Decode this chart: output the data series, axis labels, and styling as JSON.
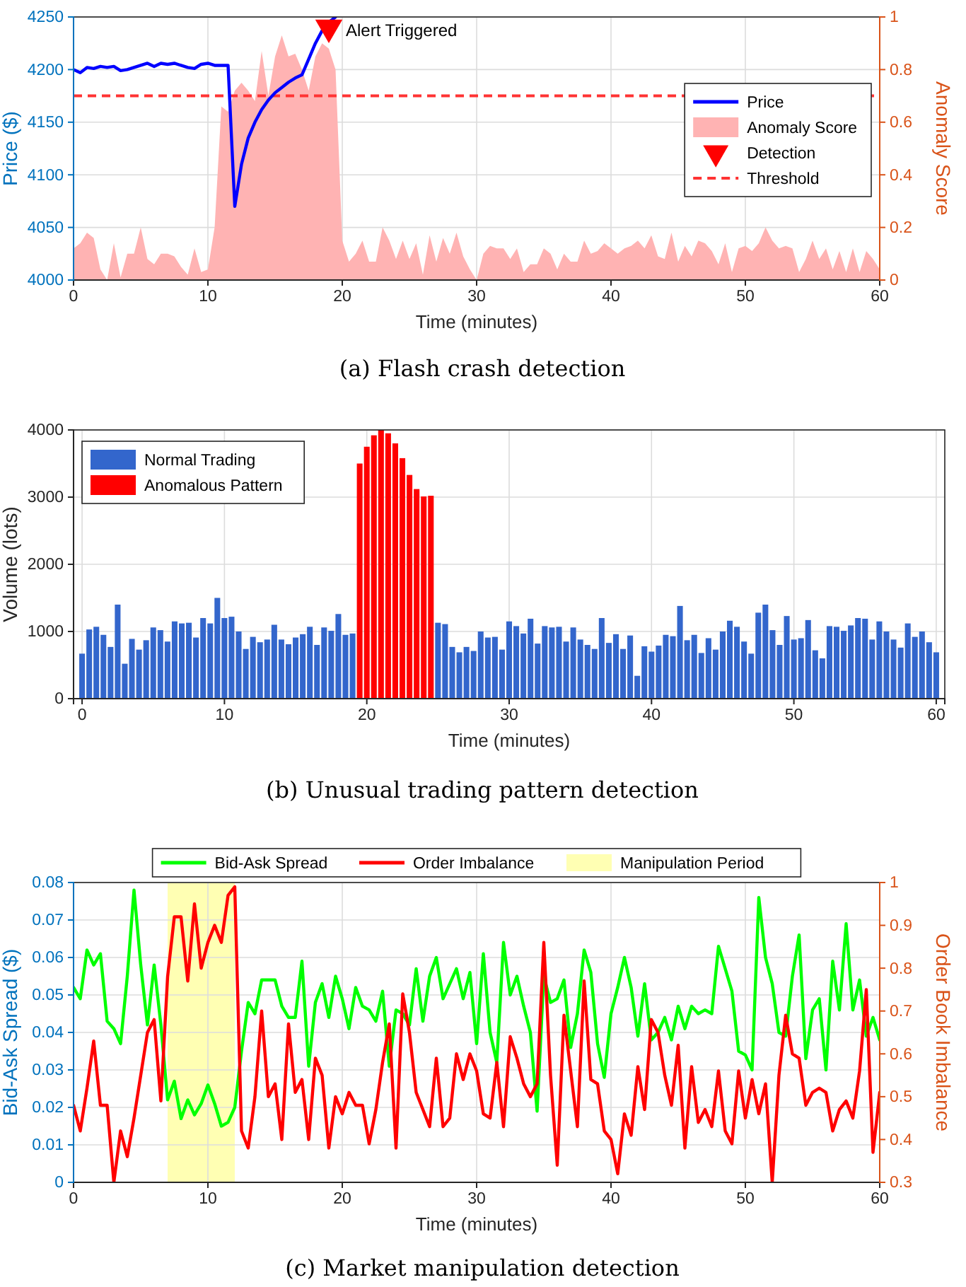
{
  "chart_data": [
    {
      "type": "line",
      "title": "(a) Flash crash detection",
      "xlabel": "Time (minutes)",
      "ylabel": "Price ($)",
      "y2label": "Anomaly Score",
      "xlim": [
        0,
        60
      ],
      "xticks": [
        0,
        10,
        20,
        30,
        40,
        50,
        60
      ],
      "ylim": [
        4000,
        4250
      ],
      "yticks": [
        4000,
        4050,
        4100,
        4150,
        4200,
        4250
      ],
      "y2lim": [
        0,
        1
      ],
      "y2ticks": [
        0,
        0.2,
        0.4,
        0.6,
        0.8,
        1
      ],
      "grid": true,
      "legend": "right",
      "x": [
        0,
        0.5,
        1,
        1.5,
        2,
        2.5,
        3,
        3.5,
        4,
        4.5,
        5,
        5.5,
        6,
        6.5,
        7,
        7.5,
        8,
        8.5,
        9,
        9.5,
        10,
        10.5,
        11,
        11.5,
        12,
        12.5,
        13,
        13.5,
        14,
        14.5,
        15,
        15.5,
        16,
        16.5,
        17,
        17.5,
        18,
        18.5,
        19,
        19.5,
        20,
        20.5,
        21,
        21.5,
        22,
        22.5,
        23,
        23.5,
        24,
        24.5,
        25,
        25.5,
        26,
        26.5,
        27,
        27.5,
        28,
        28.5,
        29,
        29.5,
        30,
        30.5,
        31,
        31.5,
        32,
        32.5,
        33,
        33.5,
        34,
        34.5,
        35,
        35.5,
        36,
        36.5,
        37,
        37.5,
        38,
        38.5,
        39,
        39.5,
        40,
        40.5,
        41,
        41.5,
        42,
        42.5,
        43,
        43.5,
        44,
        44.5,
        45,
        45.5,
        46,
        46.5,
        47,
        47.5,
        48,
        48.5,
        49,
        49.5,
        50,
        50.5,
        51,
        51.5,
        52,
        52.5,
        53,
        53.5,
        54,
        54.5,
        55,
        55.5,
        56,
        56.5,
        57,
        57.5,
        58,
        58.5,
        59,
        59.5,
        60
      ],
      "series": [
        {
          "name": "Price",
          "color": "#0000ff",
          "x": [
            0,
            0.5,
            1,
            1.5,
            2,
            2.5,
            3,
            3.5,
            4,
            4.5,
            5,
            5.5,
            6,
            6.5,
            7,
            7.5,
            8,
            8.5,
            9,
            9.5,
            10,
            10.5,
            11,
            11.5,
            12,
            12.5,
            13,
            13.5,
            14,
            14.5,
            15,
            15.5,
            16,
            16.5,
            17,
            17.5,
            18,
            18.5,
            19,
            19.5
          ],
          "values": [
            4200,
            4197,
            4202,
            4201,
            4203,
            4202,
            4203,
            4199,
            4200,
            4202,
            4204,
            4206,
            4203,
            4206,
            4205,
            4206,
            4204,
            4202,
            4201,
            4205,
            4206,
            4204,
            4204,
            4204,
            4070,
            4110,
            4135,
            4150,
            4162,
            4171,
            4178,
            4183,
            4188,
            4192,
            4195,
            4210,
            4225,
            4237,
            4245,
            4250
          ]
        },
        {
          "name": "Anomaly Score",
          "type": "area",
          "axis": "y2",
          "color": "#ffb3b3",
          "values": [
            0.12,
            0.14,
            0.18,
            0.16,
            0.04,
            0,
            0.14,
            0.01,
            0.1,
            0.1,
            0.2,
            0.08,
            0.06,
            0.1,
            0.1,
            0.09,
            0.05,
            0.02,
            0.12,
            0.03,
            0.04,
            0.2,
            0.66,
            0.64,
            0.72,
            0.75,
            0.72,
            0.68,
            0.87,
            0.7,
            0.85,
            0.93,
            0.85,
            0.86,
            0.8,
            0.72,
            0.85,
            0.9,
            0.88,
            0.8,
            0.15,
            0.07,
            0.1,
            0.15,
            0.07,
            0.07,
            0.2,
            0.15,
            0.08,
            0.15,
            0.08,
            0.14,
            0.02,
            0.17,
            0.07,
            0.16,
            0.1,
            0.18,
            0.09,
            0.04,
            0,
            0.1,
            0.13,
            0.12,
            0.12,
            0.08,
            0.12,
            0.03,
            0.06,
            0.06,
            0.12,
            0.1,
            0.04,
            0.1,
            0.07,
            0.07,
            0.15,
            0.1,
            0.11,
            0.14,
            0.12,
            0.1,
            0.12,
            0.13,
            0.15,
            0.12,
            0.17,
            0.09,
            0.08,
            0.18,
            0.07,
            0.13,
            0.09,
            0.15,
            0.14,
            0.11,
            0.06,
            0.14,
            0.03,
            0.12,
            0.13,
            0.11,
            0.14,
            0.2,
            0.15,
            0.12,
            0.13,
            0.12,
            0.03,
            0.08,
            0.15,
            0.08,
            0.12,
            0.04,
            0.11,
            0.03,
            0.12,
            0.03,
            0.11,
            0.08,
            0.04
          ]
        },
        {
          "name": "Detection",
          "type": "scatter",
          "marker": "triangle",
          "color": "#ff0000",
          "x": [
            19
          ],
          "values": [
            4240
          ]
        }
      ],
      "ref_lines": [
        {
          "axis": "y2",
          "value": 0.7,
          "label": "Threshold",
          "color": "#ff3333",
          "line_style": "dashed"
        }
      ],
      "annotations": [
        {
          "text": "Alert Triggered",
          "x": 19,
          "y": 4240
        }
      ]
    },
    {
      "type": "bar",
      "title": "(b) Unusual trading pattern detection",
      "xlabel": "Time (minutes)",
      "ylabel": "Volume (lots)",
      "xlim": [
        -0.6,
        60.6
      ],
      "xticks": [
        0,
        10,
        20,
        30,
        40,
        50,
        60
      ],
      "ylim": [
        0,
        4000
      ],
      "yticks": [
        0,
        1000,
        2000,
        3000,
        4000
      ],
      "grid": true,
      "legend": "top left",
      "x": [
        0,
        0.5,
        1,
        1.5,
        2,
        2.5,
        3,
        3.5,
        4,
        4.5,
        5,
        5.5,
        6,
        6.5,
        7,
        7.5,
        8,
        8.5,
        9,
        9.5,
        10,
        10.5,
        11,
        11.5,
        12,
        12.5,
        13,
        13.5,
        14,
        14.5,
        15,
        15.5,
        16,
        16.5,
        17,
        17.5,
        18,
        18.5,
        19,
        19.5,
        20,
        20.5,
        21,
        21.5,
        22,
        22.5,
        23,
        23.5,
        24,
        24.5,
        25,
        25.5,
        26,
        26.5,
        27,
        27.5,
        28,
        28.5,
        29,
        29.5,
        30,
        30.5,
        31,
        31.5,
        32,
        32.5,
        33,
        33.5,
        34,
        34.5,
        35,
        35.5,
        36,
        36.5,
        37,
        37.5,
        38,
        38.5,
        39,
        39.5,
        40,
        40.5,
        41,
        41.5,
        42,
        42.5,
        43,
        43.5,
        44,
        44.5,
        45,
        45.5,
        46,
        46.5,
        47,
        47.5,
        48,
        48.5,
        49,
        49.5,
        50,
        50.5,
        51,
        51.5,
        52,
        52.5,
        53,
        53.5,
        54,
        54.5,
        55,
        55.5,
        56,
        56.5,
        57,
        57.5,
        58,
        58.5,
        59,
        59.5,
        60
      ],
      "series": [
        {
          "name": "Normal Trading",
          "color": "#3366cc",
          "values": [
            670,
            1030,
            1070,
            950,
            770,
            1400,
            520,
            890,
            730,
            870,
            1060,
            1020,
            850,
            1150,
            1120,
            1130,
            910,
            1200,
            1120,
            1500,
            1200,
            1220,
            1000,
            740,
            920,
            840,
            880,
            1100,
            880,
            810,
            910,
            960,
            1070,
            800,
            1060,
            1010,
            1260,
            950,
            970,
            null,
            null,
            null,
            null,
            null,
            null,
            null,
            null,
            null,
            null,
            null,
            1130,
            1110,
            770,
            690,
            770,
            710,
            1000,
            910,
            920,
            730,
            1150,
            1080,
            970,
            1190,
            820,
            1080,
            1060,
            1070,
            850,
            1060,
            880,
            800,
            740,
            1200,
            830,
            960,
            740,
            940,
            340,
            780,
            700,
            790,
            950,
            930,
            1380,
            870,
            950,
            680,
            900,
            730,
            1000,
            1160,
            1070,
            850,
            670,
            1280,
            1400,
            1020,
            800,
            1230,
            880,
            900,
            1170,
            720,
            600,
            1080,
            1070,
            1010,
            1090,
            1200,
            1190,
            880,
            1150,
            1000,
            880,
            760,
            1120,
            920,
            1000,
            840,
            690
          ]
        },
        {
          "name": "Anomalous Pattern",
          "color": "#ff0000",
          "values": [
            null,
            null,
            null,
            null,
            null,
            null,
            null,
            null,
            null,
            null,
            null,
            null,
            null,
            null,
            null,
            null,
            null,
            null,
            null,
            null,
            null,
            null,
            null,
            null,
            null,
            null,
            null,
            null,
            null,
            null,
            null,
            null,
            null,
            null,
            null,
            null,
            null,
            null,
            null,
            3500,
            3750,
            3920,
            4000,
            3950,
            3800,
            3580,
            3330,
            3120,
            3010,
            3020,
            null,
            null,
            null,
            null,
            null,
            null,
            null,
            null,
            null,
            null,
            null,
            null,
            null,
            null,
            null,
            null,
            null,
            null,
            null,
            null,
            null,
            null,
            null,
            null,
            null,
            null,
            null,
            null,
            null,
            null,
            null,
            null,
            null,
            null,
            null,
            null,
            null,
            null,
            null,
            null,
            null,
            null,
            null,
            null,
            null,
            null,
            null,
            null,
            null,
            null,
            null,
            null,
            null,
            null,
            null,
            null,
            null,
            null,
            null,
            null,
            null,
            null,
            null,
            null,
            null,
            null,
            null,
            null,
            null,
            null,
            null
          ]
        }
      ]
    },
    {
      "type": "line",
      "title": "(c) Market manipulation detection",
      "xlabel": "Time (minutes)",
      "ylabel": "Bid-Ask Spread ($)",
      "y2label": "Order Book Imbalance",
      "xlim": [
        0,
        60
      ],
      "xticks": [
        0,
        10,
        20,
        30,
        40,
        50,
        60
      ],
      "ylim": [
        0,
        0.08
      ],
      "yticks": [
        0,
        0.01,
        0.02,
        0.03,
        0.04,
        0.05,
        0.06,
        0.07,
        0.08
      ],
      "y2lim": [
        0.3,
        1
      ],
      "y2ticks": [
        0.3,
        0.4,
        0.5,
        0.6,
        0.7,
        0.8,
        0.9,
        1
      ],
      "grid": true,
      "legend": "top",
      "x": [
        0,
        0.5,
        1,
        1.5,
        2,
        2.5,
        3,
        3.5,
        4,
        4.5,
        5,
        5.5,
        6,
        6.5,
        7,
        7.5,
        8,
        8.5,
        9,
        9.5,
        10,
        10.5,
        11,
        11.5,
        12,
        12.5,
        13,
        13.5,
        14,
        14.5,
        15,
        15.5,
        16,
        16.5,
        17,
        17.5,
        18,
        18.5,
        19,
        19.5,
        20,
        20.5,
        21,
        21.5,
        22,
        22.5,
        23,
        23.5,
        24,
        24.5,
        25,
        25.5,
        26,
        26.5,
        27,
        27.5,
        28,
        28.5,
        29,
        29.5,
        30,
        30.5,
        31,
        31.5,
        32,
        32.5,
        33,
        33.5,
        34,
        34.5,
        35,
        35.5,
        36,
        36.5,
        37,
        37.5,
        38,
        38.5,
        39,
        39.5,
        40,
        40.5,
        41,
        41.5,
        42,
        42.5,
        43,
        43.5,
        44,
        44.5,
        45,
        45.5,
        46,
        46.5,
        47,
        47.5,
        48,
        48.5,
        49,
        49.5,
        50,
        50.5,
        51,
        51.5,
        52,
        52.5,
        53,
        53.5,
        54,
        54.5,
        55,
        55.5,
        56,
        56.5,
        57,
        57.5,
        58,
        58.5,
        59,
        59.5,
        60
      ],
      "series": [
        {
          "name": "Bid-Ask Spread",
          "color": "#00ff00",
          "values": [
            0.052,
            0.049,
            0.062,
            0.058,
            0.061,
            0.043,
            0.041,
            0.037,
            0.055,
            0.078,
            0.058,
            0.042,
            0.058,
            0.042,
            0.022,
            0.027,
            0.017,
            0.022,
            0.018,
            0.021,
            0.026,
            0.021,
            0.015,
            0.016,
            0.02,
            0.035,
            0.048,
            0.045,
            0.054,
            0.054,
            0.054,
            0.047,
            0.044,
            0.044,
            0.059,
            0.031,
            0.048,
            0.053,
            0.044,
            0.055,
            0.049,
            0.041,
            0.052,
            0.047,
            0.046,
            0.043,
            0.051,
            0.031,
            0.046,
            0.045,
            0.042,
            0.057,
            0.043,
            0.055,
            0.06,
            0.049,
            0.053,
            0.057,
            0.049,
            0.056,
            0.037,
            0.061,
            0.04,
            0.032,
            0.064,
            0.05,
            0.055,
            0.047,
            0.04,
            0.019,
            0.055,
            0.048,
            0.049,
            0.054,
            0.036,
            0.045,
            0.062,
            0.056,
            0.037,
            0.028,
            0.045,
            0.052,
            0.06,
            0.052,
            0.039,
            0.053,
            0.038,
            0.04,
            0.044,
            0.038,
            0.047,
            0.041,
            0.047,
            0.045,
            0.046,
            0.045,
            0.063,
            0.057,
            0.051,
            0.035,
            0.034,
            0.03,
            0.076,
            0.06,
            0.053,
            0.04,
            0.039,
            0.055,
            0.066,
            0.033,
            0.046,
            0.049,
            0.03,
            0.059,
            0.046,
            0.069,
            0.046,
            0.054,
            0.039,
            0.044,
            0.038
          ]
        },
        {
          "name": "Order Imbalance",
          "color": "#ff0000",
          "axis": "y2",
          "values": [
            0.48,
            0.42,
            0.52,
            0.63,
            0.48,
            0.48,
            0.3,
            0.42,
            0.36,
            0.45,
            0.55,
            0.65,
            0.68,
            0.49,
            0.78,
            0.92,
            0.92,
            0.77,
            0.95,
            0.8,
            0.86,
            0.9,
            0.86,
            0.97,
            0.99,
            0.42,
            0.38,
            0.5,
            0.7,
            0.5,
            0.53,
            0.4,
            0.67,
            0.51,
            0.54,
            0.4,
            0.59,
            0.55,
            0.38,
            0.5,
            0.46,
            0.51,
            0.48,
            0.48,
            0.39,
            0.47,
            0.58,
            0.67,
            0.38,
            0.74,
            0.65,
            0.51,
            0.47,
            0.43,
            0.59,
            0.43,
            0.45,
            0.6,
            0.54,
            0.6,
            0.56,
            0.46,
            0.45,
            0.58,
            0.43,
            0.64,
            0.59,
            0.53,
            0.5,
            0.53,
            0.86,
            0.55,
            0.34,
            0.69,
            0.56,
            0.43,
            0.77,
            0.54,
            0.53,
            0.42,
            0.4,
            0.32,
            0.46,
            0.41,
            0.57,
            0.47,
            0.68,
            0.65,
            0.55,
            0.48,
            0.62,
            0.38,
            0.57,
            0.44,
            0.47,
            0.43,
            0.56,
            0.42,
            0.39,
            0.56,
            0.45,
            0.54,
            0.46,
            0.53,
            0.3,
            0.55,
            0.69,
            0.6,
            0.59,
            0.48,
            0.51,
            0.52,
            0.51,
            0.42,
            0.47,
            0.49,
            0.45,
            0.56,
            0.75,
            0.37,
            0.51
          ]
        }
      ],
      "bands": [
        {
          "axis": "x",
          "from": 7,
          "to": 12,
          "label": "Manipulation Period",
          "color": "#ffffb3"
        }
      ]
    }
  ]
}
